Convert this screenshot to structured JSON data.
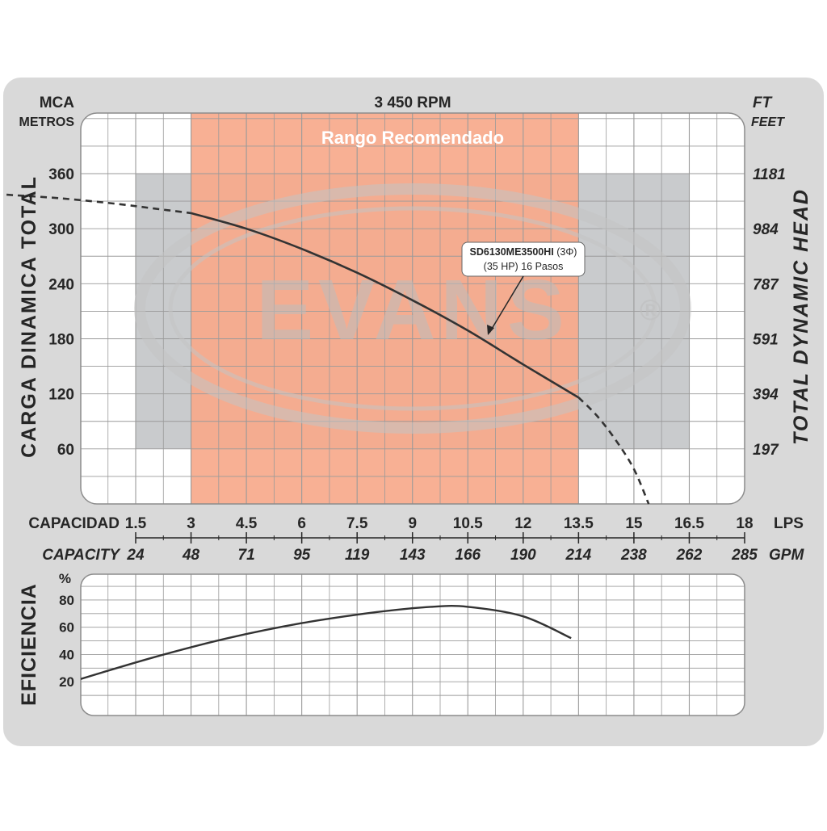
{
  "colors": {
    "frame": "#d9d9d9",
    "plot_bg": "#ffffff",
    "grid": "#9a9a9a",
    "recommended_range": "#f7a98b",
    "operating_zone": "#c9cbcd",
    "curve": "#333333",
    "text": "#262626",
    "watermark": "#bdbdbd"
  },
  "watermark": {
    "text": "EVANS",
    "registered": "®"
  },
  "chart_data": [
    {
      "type": "line",
      "title": "3 450 RPM",
      "ylabel": "CARGA DINAMICA TOTAL",
      "ylabel_right": "TOTAL DYNAMIC HEAD",
      "yunit_left": [
        "MCA",
        "METROS"
      ],
      "yunit_right": [
        "FT",
        "FEET"
      ],
      "xlim": [
        -2,
        18
      ],
      "ylim": [
        0,
        420
      ],
      "y_ticks": [
        60,
        120,
        180,
        240,
        300,
        360
      ],
      "y_ticks_right": [
        "197",
        "394",
        "591",
        "787",
        "984",
        "1181"
      ],
      "recommended_range": {
        "label": "Rango Recomendado",
        "x_from": 3,
        "x_to": 13.5
      },
      "operating_zone": {
        "x_from": 1.5,
        "x_to": 16.5,
        "y_from": 60,
        "y_to": 360
      },
      "annotation": {
        "model": "SD6130ME3500HI",
        "phase": "(3Φ)",
        "detail": "(35 HP) 16 Pasos"
      },
      "series": [
        {
          "name": "SD6130ME3500HI",
          "style": "solid",
          "x": [
            3,
            4.5,
            6,
            7.5,
            9,
            10.5,
            12,
            13.5
          ],
          "y": [
            317,
            300,
            278,
            252,
            222,
            189,
            152,
            116
          ]
        },
        {
          "name": "",
          "style": "dashed",
          "x": [
            -2,
            -0.5,
            1,
            2,
            3
          ],
          "y": [
            337,
            333,
            327,
            322,
            317
          ]
        },
        {
          "name": "",
          "style": "dashed",
          "x": [
            13.5,
            14,
            14.5,
            15,
            15.4
          ],
          "y": [
            116,
            96,
            70,
            38,
            0
          ]
        }
      ]
    },
    {
      "type": "line",
      "ylabel": "EFICIENCIA",
      "yunit": "%",
      "xlim": [
        -2,
        18
      ],
      "ylim": [
        0,
        100
      ],
      "y_ticks": [
        20,
        40,
        60,
        80
      ],
      "series": [
        {
          "name": "",
          "x": [
            -2,
            0,
            2,
            4,
            6,
            8,
            9.5,
            10.5,
            12,
            13.3
          ],
          "y": [
            5,
            22,
            38,
            52,
            63,
            71,
            75,
            75,
            68,
            52
          ]
        }
      ]
    }
  ],
  "x_axis": {
    "label_lps": "CAPACIDAD",
    "label_gpm": "CAPACITY",
    "unit_lps": "LPS",
    "unit_gpm": "GPM",
    "ticks": [
      1.5,
      3,
      4.5,
      6,
      7.5,
      9,
      10.5,
      12,
      13.5,
      15,
      16.5,
      18
    ],
    "lps_labels": [
      "1.5",
      "3",
      "4.5",
      "6",
      "7.5",
      "9",
      "10.5",
      "12",
      "13.5",
      "15",
      "16.5",
      "18"
    ],
    "gpm_labels": [
      "24",
      "48",
      "71",
      "95",
      "119",
      "143",
      "166",
      "190",
      "214",
      "238",
      "262",
      "285"
    ]
  }
}
